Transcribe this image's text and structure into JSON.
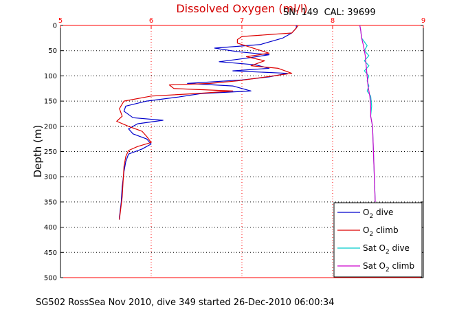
{
  "chart_data": {
    "type": "line",
    "title": "Dissolved Oxygen (ml/l)",
    "subtitle": "SN: 149  CAL: 39699",
    "ylabel": "Depth (m)",
    "caption": "SG502 RossSea Nov 2010, dive 349 started 26-Dec-2010 06:00:34",
    "xlim": [
      5,
      9
    ],
    "ylim": [
      0,
      500
    ],
    "y_reversed": true,
    "x_axis_position": "top",
    "xticks": [
      "5",
      "6",
      "7",
      "8",
      "9"
    ],
    "yticks": [
      "0",
      "50",
      "100",
      "150",
      "200",
      "250",
      "300",
      "350",
      "400",
      "450",
      "500"
    ],
    "grid": true,
    "legend_position": "bottom-right",
    "colors": {
      "axis_x": "#ff0000",
      "axis_y": "#000000",
      "title": "#d40000"
    },
    "series": [
      {
        "name": "O2 dive",
        "legend": {
          "main": "O",
          "sub": "2",
          "rest": " dive"
        },
        "color": "#0000cc",
        "points": [
          [
            7.6,
            0
          ],
          [
            7.6,
            5
          ],
          [
            7.55,
            15
          ],
          [
            7.45,
            25
          ],
          [
            7.2,
            38
          ],
          [
            6.7,
            45
          ],
          [
            6.95,
            52
          ],
          [
            7.3,
            58
          ],
          [
            7.05,
            65
          ],
          [
            6.75,
            72
          ],
          [
            7.15,
            78
          ],
          [
            7.3,
            85
          ],
          [
            6.9,
            90
          ],
          [
            7.5,
            95
          ],
          [
            7.3,
            102
          ],
          [
            7.0,
            108
          ],
          [
            6.4,
            115
          ],
          [
            6.9,
            120
          ],
          [
            7.1,
            130
          ],
          [
            6.55,
            135
          ],
          [
            6.3,
            142
          ],
          [
            5.95,
            150
          ],
          [
            5.72,
            160
          ],
          [
            5.7,
            170
          ],
          [
            5.8,
            183
          ],
          [
            6.13,
            188
          ],
          [
            5.85,
            195
          ],
          [
            5.75,
            205
          ],
          [
            5.8,
            215
          ],
          [
            5.95,
            225
          ],
          [
            6.0,
            235
          ],
          [
            5.9,
            245
          ],
          [
            5.75,
            255
          ],
          [
            5.72,
            270
          ],
          [
            5.7,
            290
          ],
          [
            5.68,
            320
          ],
          [
            5.67,
            350
          ],
          [
            5.65,
            380
          ],
          [
            5.65,
            385
          ]
        ]
      },
      {
        "name": "O2 climb",
        "legend": {
          "main": "O",
          "sub": "2",
          "rest": " climb"
        },
        "color": "#dd0000",
        "points": [
          [
            7.62,
            0
          ],
          [
            7.6,
            5
          ],
          [
            7.55,
            15
          ],
          [
            7.0,
            22
          ],
          [
            6.95,
            28
          ],
          [
            6.95,
            35
          ],
          [
            7.3,
            55
          ],
          [
            7.05,
            62
          ],
          [
            7.25,
            70
          ],
          [
            7.1,
            80
          ],
          [
            7.4,
            85
          ],
          [
            7.55,
            95
          ],
          [
            6.95,
            110
          ],
          [
            6.65,
            115
          ],
          [
            6.2,
            118
          ],
          [
            6.25,
            125
          ],
          [
            6.9,
            130
          ],
          [
            6.5,
            135
          ],
          [
            6.0,
            140
          ],
          [
            5.7,
            150
          ],
          [
            5.65,
            165
          ],
          [
            5.68,
            180
          ],
          [
            5.62,
            190
          ],
          [
            5.75,
            200
          ],
          [
            5.9,
            210
          ],
          [
            5.95,
            220
          ],
          [
            6.0,
            232
          ],
          [
            5.85,
            240
          ],
          [
            5.75,
            248
          ],
          [
            5.72,
            260
          ],
          [
            5.7,
            280
          ],
          [
            5.69,
            310
          ],
          [
            5.68,
            340
          ],
          [
            5.66,
            370
          ],
          [
            5.65,
            385
          ]
        ]
      },
      {
        "name": "Sat O2 dive",
        "legend": {
          "main": "Sat O",
          "sub": "2",
          "rest": " dive"
        },
        "color": "#00cccc",
        "points": [
          [
            8.3,
            0
          ],
          [
            8.31,
            10
          ],
          [
            8.32,
            25
          ],
          [
            8.38,
            40
          ],
          [
            8.35,
            50
          ],
          [
            8.4,
            60
          ],
          [
            8.35,
            70
          ],
          [
            8.4,
            80
          ],
          [
            8.35,
            90
          ],
          [
            8.4,
            100
          ],
          [
            8.38,
            110
          ],
          [
            8.4,
            120
          ],
          [
            8.38,
            130
          ],
          [
            8.42,
            140
          ],
          [
            8.43,
            160
          ],
          [
            8.42,
            180
          ],
          [
            8.44,
            200
          ],
          [
            8.45,
            250
          ],
          [
            8.46,
            300
          ],
          [
            8.47,
            350
          ]
        ]
      },
      {
        "name": "Sat O2 climb",
        "legend": {
          "main": "Sat O",
          "sub": "2",
          "rest": " climb"
        },
        "color": "#cc00cc",
        "points": [
          [
            8.3,
            0
          ],
          [
            8.31,
            10
          ],
          [
            8.32,
            25
          ],
          [
            8.34,
            40
          ],
          [
            8.36,
            60
          ],
          [
            8.37,
            80
          ],
          [
            8.38,
            100
          ],
          [
            8.39,
            120
          ],
          [
            8.41,
            140
          ],
          [
            8.42,
            160
          ],
          [
            8.42,
            180
          ],
          [
            8.44,
            200
          ],
          [
            8.45,
            250
          ],
          [
            8.46,
            300
          ],
          [
            8.47,
            350
          ]
        ]
      }
    ]
  }
}
